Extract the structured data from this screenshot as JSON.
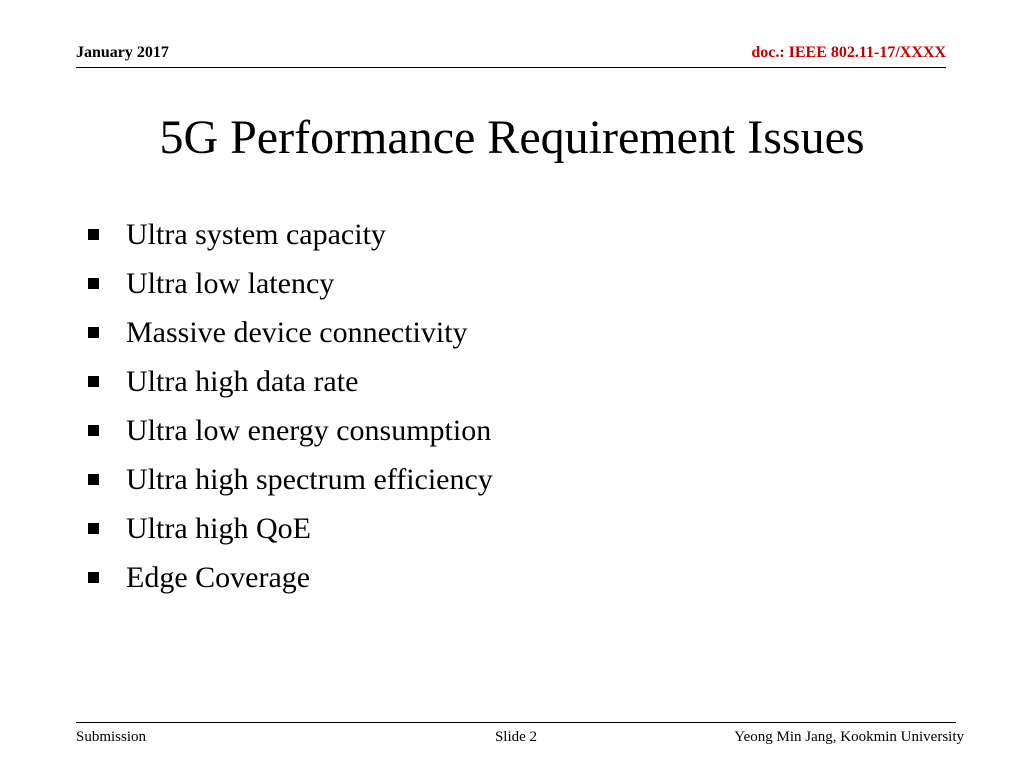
{
  "header": {
    "date": "January 2017",
    "doc_id": "doc.: IEEE 802.11-17/XXXX",
    "doc_id_color": "#c00000"
  },
  "title": "5G Performance Requirement Issues",
  "bullets": [
    "Ultra system capacity",
    "Ultra low latency",
    "Massive device connectivity",
    "Ultra high data rate",
    "Ultra low energy consumption",
    "Ultra high spectrum efficiency",
    "Ultra high QoE",
    "Edge Coverage"
  ],
  "bullet_icon": "square-bullet-icon",
  "footer": {
    "left": "Submission",
    "center": "Slide 2",
    "right": "Yeong Min Jang, Kookmin University"
  }
}
